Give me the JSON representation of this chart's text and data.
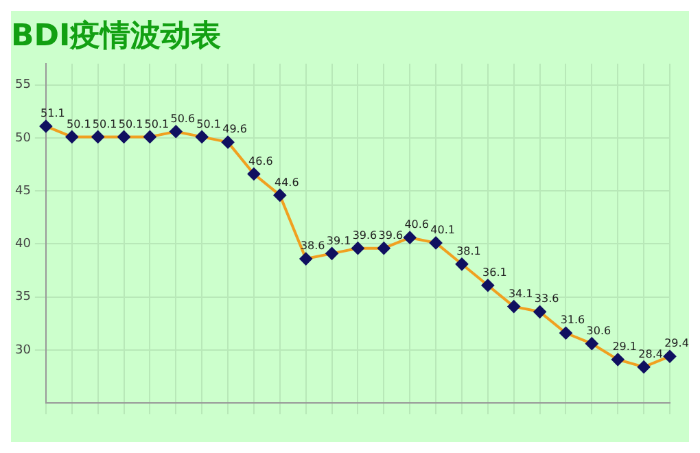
{
  "chart_data": {
    "type": "line",
    "title": "BDI疫情波动表",
    "categories": [
      null,
      null,
      null,
      null,
      null,
      null,
      null,
      null,
      null,
      null,
      null,
      null,
      null,
      null,
      null,
      null,
      null,
      null,
      null,
      null,
      null,
      null,
      null,
      null,
      null
    ],
    "series": [
      {
        "color": "#f0a020",
        "values": [
          51.1,
          50.1,
          50.1,
          50.1,
          50.1,
          50.6,
          50.1,
          49.6,
          46.6,
          44.6,
          38.6,
          39.1,
          39.6,
          39.6,
          40.6,
          40.1,
          38.1,
          36.1,
          34.1,
          33.6,
          31.6,
          30.6,
          29.1,
          28.4,
          29.4
        ]
      }
    ],
    "ylim": [
      25,
      57
    ],
    "yticks": [
      30,
      35,
      40,
      45,
      50,
      55
    ],
    "grid": true,
    "marker": "diamond",
    "line_style": "solid",
    "data_labels": true,
    "legend": false
  }
}
